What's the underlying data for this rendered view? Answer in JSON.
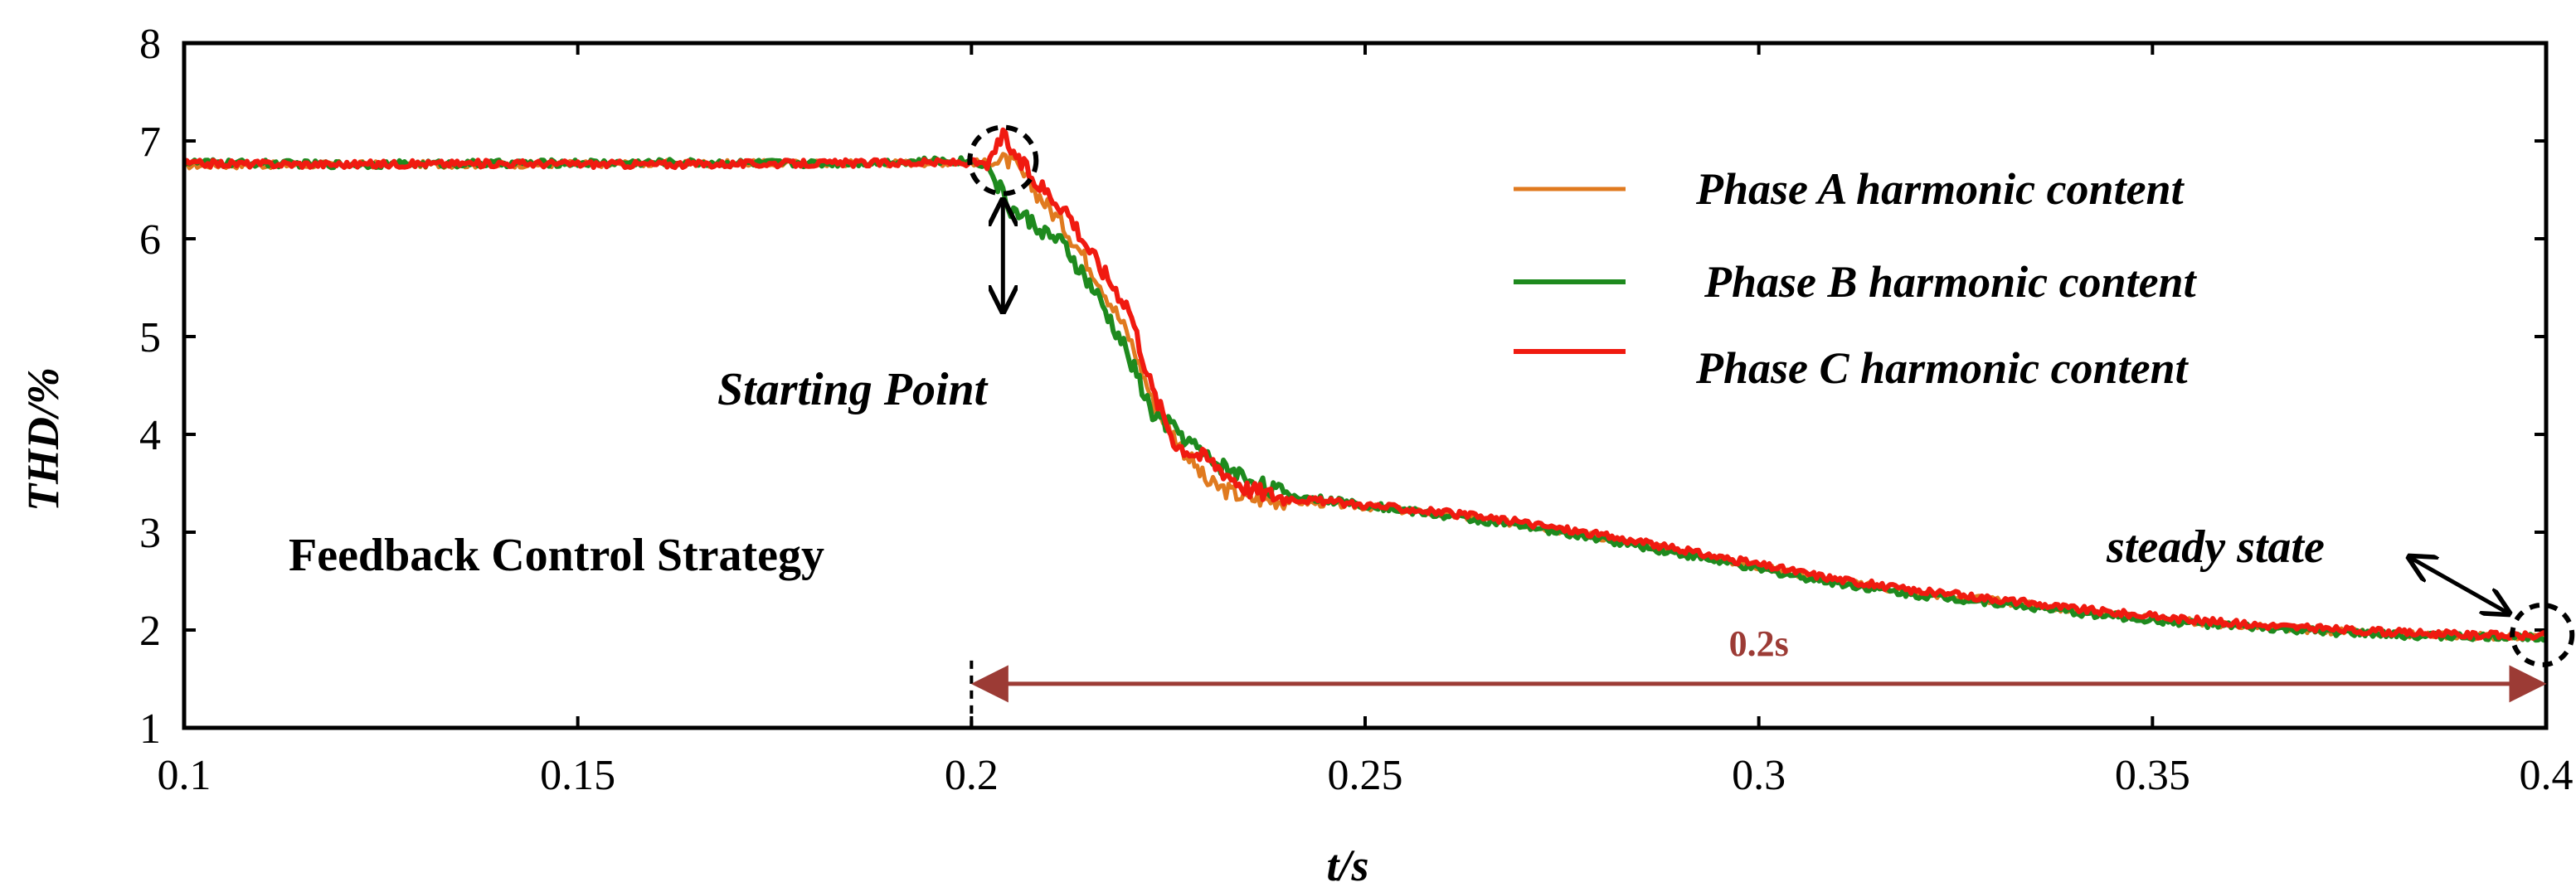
{
  "chart_data": {
    "type": "line",
    "title": "",
    "xlabel": "t/s",
    "ylabel": "THD/%",
    "xlim": [
      0.1,
      0.4
    ],
    "ylim": [
      1,
      8
    ],
    "xticks": [
      0.1,
      0.15,
      0.2,
      0.25,
      0.3,
      0.35,
      0.4
    ],
    "xtick_labels": [
      "0.1",
      "0.15",
      "0.2",
      "0.25",
      "0.3",
      "0.35",
      "0.4"
    ],
    "yticks": [
      1,
      2,
      3,
      4,
      5,
      6,
      7,
      8
    ],
    "ytick_labels": [
      "1",
      "2",
      "3",
      "4",
      "5",
      "6",
      "7",
      "8"
    ],
    "legend_position": "top-right",
    "series": [
      {
        "name": "Phase A harmonic content",
        "color": "#e07a1f",
        "x": [
          0.1,
          0.12,
          0.14,
          0.16,
          0.18,
          0.2,
          0.202,
          0.205,
          0.208,
          0.212,
          0.216,
          0.22,
          0.223,
          0.226,
          0.23,
          0.235,
          0.24,
          0.25,
          0.26,
          0.27,
          0.28,
          0.29,
          0.3,
          0.31,
          0.32,
          0.33,
          0.34,
          0.35,
          0.36,
          0.37,
          0.38,
          0.39,
          0.4
        ],
        "y": [
          6.75,
          6.76,
          6.76,
          6.77,
          6.77,
          6.78,
          6.78,
          6.8,
          6.5,
          6.1,
          5.6,
          5.0,
          4.35,
          3.95,
          3.5,
          3.35,
          3.32,
          3.26,
          3.18,
          3.08,
          2.95,
          2.8,
          2.65,
          2.5,
          2.38,
          2.3,
          2.2,
          2.12,
          2.05,
          2.0,
          1.96,
          1.94,
          1.93
        ]
      },
      {
        "name": "Phase B harmonic content",
        "color": "#1e8a1e",
        "x": [
          0.1,
          0.12,
          0.14,
          0.16,
          0.18,
          0.2,
          0.202,
          0.205,
          0.208,
          0.212,
          0.216,
          0.22,
          0.223,
          0.226,
          0.23,
          0.235,
          0.24,
          0.25,
          0.26,
          0.27,
          0.28,
          0.29,
          0.3,
          0.31,
          0.32,
          0.33,
          0.34,
          0.35,
          0.36,
          0.37,
          0.38,
          0.39,
          0.4
        ],
        "y": [
          6.78,
          6.76,
          6.77,
          6.78,
          6.77,
          6.8,
          6.75,
          6.3,
          6.15,
          5.9,
          5.4,
          4.8,
          4.2,
          4.05,
          3.75,
          3.55,
          3.38,
          3.28,
          3.17,
          3.06,
          2.93,
          2.78,
          2.62,
          2.48,
          2.36,
          2.28,
          2.18,
          2.1,
          2.04,
          1.99,
          1.95,
          1.93,
          1.93
        ]
      },
      {
        "name": "Phase C harmonic content",
        "color": "#f01a10",
        "x": [
          0.1,
          0.12,
          0.14,
          0.16,
          0.18,
          0.2,
          0.202,
          0.204,
          0.206,
          0.208,
          0.212,
          0.216,
          0.22,
          0.223,
          0.226,
          0.23,
          0.235,
          0.24,
          0.25,
          0.26,
          0.27,
          0.28,
          0.29,
          0.3,
          0.31,
          0.32,
          0.33,
          0.34,
          0.35,
          0.36,
          0.37,
          0.38,
          0.39,
          0.4
        ],
        "y": [
          6.77,
          6.76,
          6.77,
          6.76,
          6.77,
          6.78,
          6.75,
          7.05,
          6.8,
          6.6,
          6.3,
          5.75,
          5.3,
          4.45,
          3.9,
          3.75,
          3.45,
          3.35,
          3.28,
          3.2,
          3.1,
          2.97,
          2.82,
          2.67,
          2.52,
          2.4,
          2.32,
          2.22,
          2.14,
          2.07,
          2.02,
          1.98,
          1.95,
          1.94
        ]
      }
    ],
    "annotations": {
      "starting_point": {
        "label": "Starting Point",
        "x": 0.204,
        "y": 6.8
      },
      "steady_state": {
        "label": "steady state",
        "x": 0.3995,
        "y": 1.95
      },
      "strategy_label": "Feedback Control Strategy",
      "duration": {
        "label": "0.2s",
        "x_start": 0.2,
        "x_end": 0.4,
        "y": 1.45,
        "color": "#9c3b35"
      }
    }
  }
}
